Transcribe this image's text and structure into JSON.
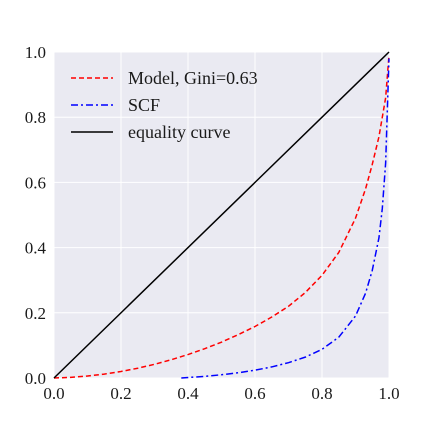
{
  "chart_data": {
    "type": "line",
    "title": "",
    "xlabel": "",
    "ylabel": "",
    "xlim": [
      0,
      1
    ],
    "ylim": [
      0,
      1
    ],
    "grid": true,
    "legend_position": "top-left",
    "x_ticks": [
      "0.0",
      "0.2",
      "0.4",
      "0.6",
      "0.8",
      "1.0"
    ],
    "y_ticks": [
      "0.0",
      "0.2",
      "0.4",
      "0.6",
      "0.8",
      "1.0"
    ],
    "colors": {
      "plot_background": "#eaeaf2",
      "grid": "#ffffff"
    },
    "series": [
      {
        "name": "Model, Gini=0.63",
        "color": "#ff0000",
        "dash": "dashed",
        "x": [
          0.0,
          0.05,
          0.1,
          0.15,
          0.2,
          0.25,
          0.3,
          0.35,
          0.4,
          0.45,
          0.5,
          0.55,
          0.6,
          0.65,
          0.7,
          0.75,
          0.8,
          0.85,
          0.9,
          0.93,
          0.95,
          0.97,
          0.98,
          0.99,
          1.0
        ],
        "y": [
          0.0,
          0.002,
          0.006,
          0.012,
          0.02,
          0.03,
          0.042,
          0.056,
          0.072,
          0.09,
          0.11,
          0.133,
          0.158,
          0.187,
          0.22,
          0.262,
          0.315,
          0.385,
          0.49,
          0.58,
          0.655,
          0.74,
          0.8,
          0.86,
          0.99
        ]
      },
      {
        "name": "SCF",
        "color": "#0000ff",
        "dash": "dashdot",
        "x": [
          0.38,
          0.45,
          0.5,
          0.55,
          0.6,
          0.65,
          0.7,
          0.75,
          0.8,
          0.85,
          0.9,
          0.93,
          0.95,
          0.97,
          0.98,
          0.99,
          1.0
        ],
        "y": [
          0.0,
          0.005,
          0.01,
          0.016,
          0.024,
          0.034,
          0.047,
          0.064,
          0.088,
          0.125,
          0.19,
          0.26,
          0.33,
          0.43,
          0.52,
          0.66,
          0.98
        ]
      },
      {
        "name": "equality curve",
        "color": "#000000",
        "dash": "solid",
        "x": [
          0,
          1
        ],
        "y": [
          0,
          1
        ]
      }
    ]
  }
}
